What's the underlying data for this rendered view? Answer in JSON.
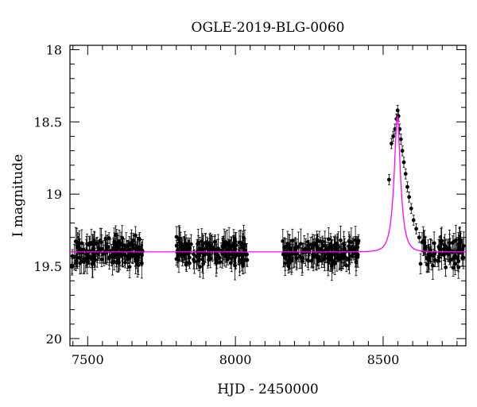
{
  "chart_data": {
    "type": "scatter",
    "title": "OGLE-2019-BLG-0060",
    "xlabel": "HJD - 2450000",
    "ylabel": "I magnitude",
    "xlim": [
      7440,
      8780
    ],
    "ylim": [
      20.05,
      17.97
    ],
    "y_inverted": true,
    "x_ticks": [
      7500,
      8000,
      8500
    ],
    "y_ticks": [
      18,
      18.5,
      19,
      19.5,
      20
    ],
    "x_tick_labels": [
      "7500",
      "8000",
      "8500"
    ],
    "y_tick_labels": [
      "18",
      "18.5",
      "19",
      "19.5",
      "20"
    ],
    "grid": false,
    "observing_seasons": [
      [
        7445,
        7690
      ],
      [
        7800,
        8040
      ],
      [
        8160,
        8420
      ],
      [
        8520,
        8775
      ]
    ],
    "series": [
      {
        "kind": "observations",
        "marker": "filled-circle",
        "error_bars": true,
        "color": "#000000",
        "baseline_mag": 19.4,
        "scatter_mag": 0.09,
        "typical_error": 0.07,
        "peak_points": [
          {
            "x": 8520,
            "y": 18.9
          },
          {
            "x": 8528,
            "y": 18.65
          },
          {
            "x": 8534,
            "y": 18.6
          },
          {
            "x": 8540,
            "y": 18.55
          },
          {
            "x": 8545,
            "y": 18.48
          },
          {
            "x": 8549,
            "y": 18.42
          },
          {
            "x": 8552,
            "y": 18.46
          },
          {
            "x": 8556,
            "y": 18.55
          },
          {
            "x": 8560,
            "y": 18.62
          },
          {
            "x": 8565,
            "y": 18.7
          },
          {
            "x": 8570,
            "y": 18.78
          },
          {
            "x": 8576,
            "y": 18.86
          },
          {
            "x": 8582,
            "y": 18.95
          },
          {
            "x": 8588,
            "y": 19.02
          },
          {
            "x": 8595,
            "y": 19.1
          },
          {
            "x": 8603,
            "y": 19.18
          },
          {
            "x": 8612,
            "y": 19.24
          },
          {
            "x": 8622,
            "y": 19.3
          }
        ]
      },
      {
        "kind": "model",
        "color": "#ff00ff",
        "baseline_mag": 19.4,
        "peak_mag": 18.46,
        "t0": 8548,
        "tE": 22,
        "u0": 0.37
      }
    ]
  }
}
